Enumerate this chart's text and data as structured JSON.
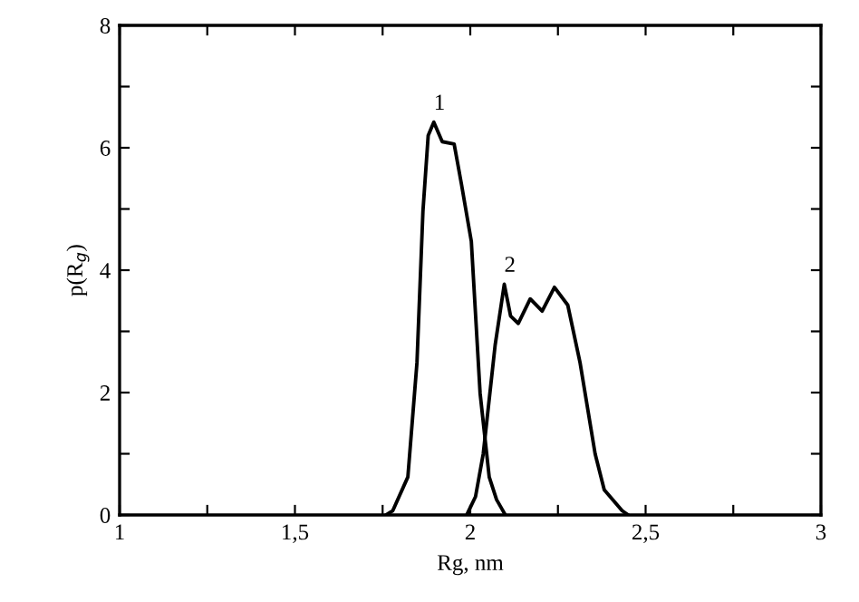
{
  "chart_data": {
    "type": "line",
    "xlabel": "Rg, nm",
    "ylabel": "p(R$_{g}$)",
    "xlim": [
      1,
      3
    ],
    "ylim": [
      0,
      8
    ],
    "xticks": [
      {
        "value": 1,
        "label": "1"
      },
      {
        "value": 1.25,
        "label": null
      },
      {
        "value": 1.5,
        "label": "1,5"
      },
      {
        "value": 1.75,
        "label": null
      },
      {
        "value": 2,
        "label": "2"
      },
      {
        "value": 2.25,
        "label": null
      },
      {
        "value": 2.5,
        "label": "2,5"
      },
      {
        "value": 2.75,
        "label": null
      },
      {
        "value": 3,
        "label": "3"
      }
    ],
    "yticks": [
      0,
      {
        "value": 1,
        "label": null
      },
      2,
      {
        "value": 3,
        "label": null
      },
      4,
      {
        "value": 5,
        "label": null
      },
      6,
      {
        "value": 7,
        "label": null
      },
      8
    ],
    "grid": false,
    "marker": "none",
    "line_style": "solid",
    "series": [
      {
        "color": "#000000",
        "x": [
          1.76,
          1.779,
          1.822,
          1.848,
          1.865,
          1.88,
          1.896,
          1.92,
          1.954,
          1.975,
          2.003,
          2.028,
          2.054,
          2.075,
          2.088,
          2.1
        ],
        "values": [
          0,
          0.07,
          0.62,
          2.49,
          4.96,
          6.2,
          6.42,
          6.1,
          6.06,
          5.4,
          4.47,
          1.99,
          0.62,
          0.25,
          0.12,
          0
        ]
      },
      {
        "color": "#000000",
        "x": [
          1.99,
          1.994,
          2.015,
          2.037,
          2.071,
          2.097,
          2.115,
          2.137,
          2.171,
          2.205,
          2.24,
          2.278,
          2.313,
          2.356,
          2.382,
          2.433,
          2.45
        ],
        "values": [
          0,
          0.05,
          0.3,
          1.0,
          2.78,
          3.77,
          3.25,
          3.13,
          3.53,
          3.33,
          3.72,
          3.43,
          2.49,
          1.0,
          0.41,
          0.07,
          0
        ]
      }
    ],
    "annotations": [
      {
        "text": "1",
        "x": 1.896,
        "y": 6.42
      },
      {
        "text": "2",
        "x": 2.097,
        "y": 3.77
      }
    ]
  }
}
